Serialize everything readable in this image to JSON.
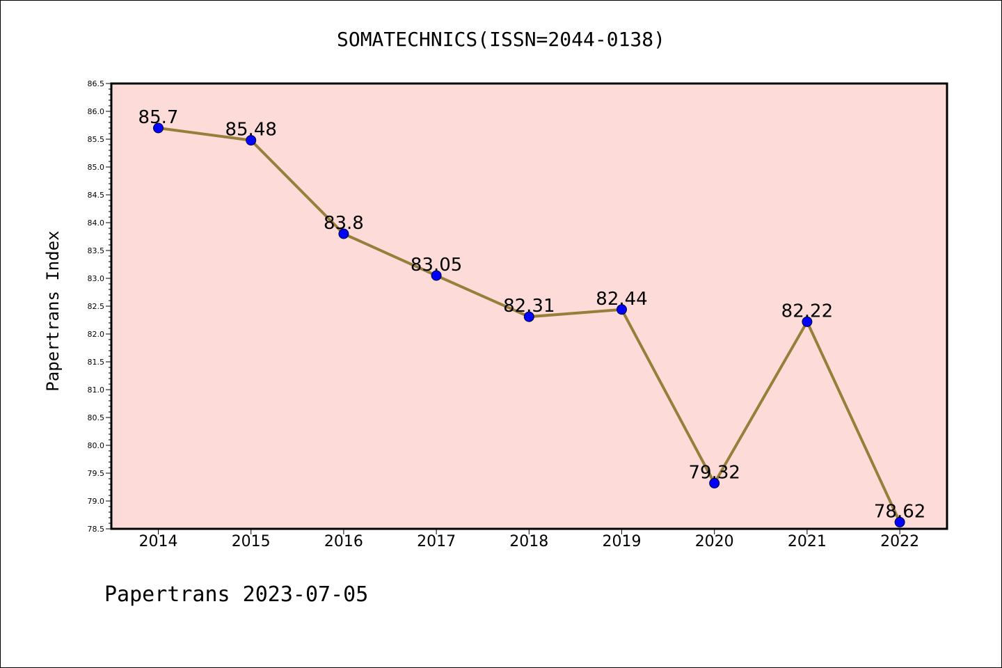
{
  "chart_data": {
    "type": "line",
    "title": "SOMATECHNICS(ISSN=2044-0138)",
    "xlabel": "",
    "ylabel": "Papertrans Index",
    "categories": [
      "2014",
      "2015",
      "2016",
      "2017",
      "2018",
      "2019",
      "2020",
      "2021",
      "2022"
    ],
    "series": [
      {
        "values": [
          85.7,
          85.48,
          83.8,
          83.05,
          82.31,
          82.44,
          79.32,
          82.22,
          78.62
        ],
        "labels": [
          "85.7",
          "85.48",
          "83.8",
          "83.05",
          "82.31",
          "82.44",
          "79.32",
          "82.22",
          "78.62"
        ]
      }
    ],
    "ylim": [
      78.5,
      86.5
    ],
    "yticks": [
      "78.5",
      "79.0",
      "79.5",
      "80.0",
      "80.5",
      "81.0",
      "81.5",
      "82.0",
      "82.5",
      "83.0",
      "83.5",
      "84.0",
      "84.5",
      "85.0",
      "85.5",
      "86.0",
      "86.5"
    ],
    "grid": false,
    "legend": "none",
    "colors": {
      "plot_background": "#fddbd8",
      "line": "#977f3b",
      "marker": "#0000ff",
      "axes": "#000000"
    }
  },
  "footer": "Papertrans 2023-07-05"
}
